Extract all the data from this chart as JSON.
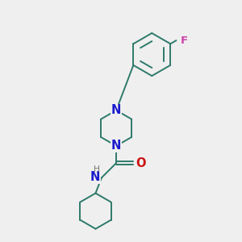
{
  "bg_color": "#efefef",
  "bond_color": "#2d7a6a",
  "N_color": "#1a1acc",
  "O_color": "#cc1111",
  "F_color": "#cc44aa",
  "H_color": "#777777",
  "line_width": 1.4,
  "font_size": 9.5,
  "fig_size": [
    3.0,
    3.0
  ],
  "dpi": 100,
  "xlim": [
    0,
    10
  ],
  "ylim": [
    0,
    10
  ]
}
